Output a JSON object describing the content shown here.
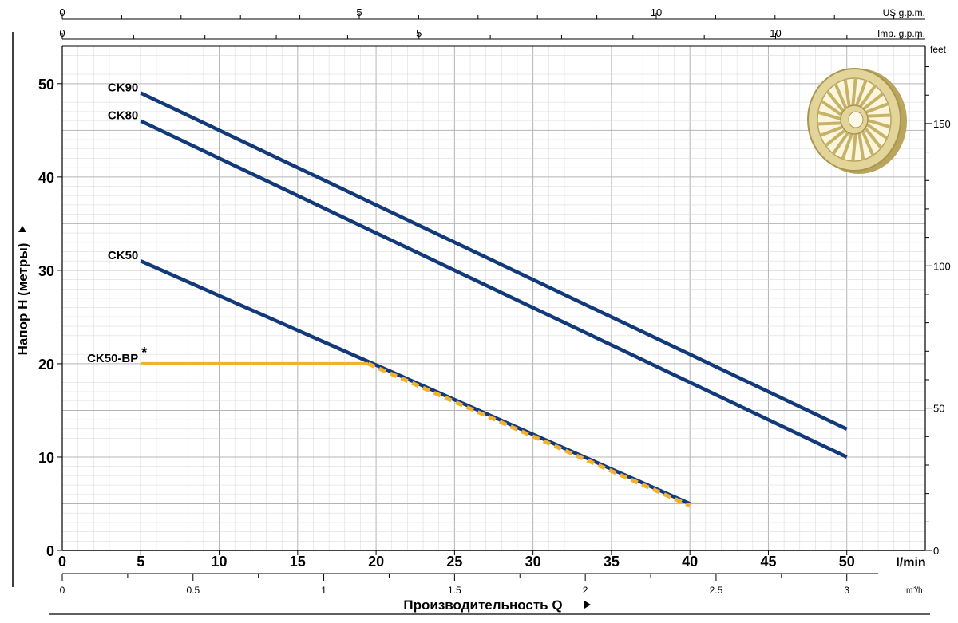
{
  "chart_data": {
    "type": "line",
    "title": "",
    "xlabel": "Производительность Q",
    "ylabel": "Напор H (метры)",
    "x_unit": "l/min",
    "xlim": [
      0,
      55
    ],
    "ylim": [
      0,
      54
    ],
    "x_ticks": [
      0,
      5,
      10,
      15,
      20,
      25,
      30,
      35,
      40,
      45,
      50
    ],
    "y_ticks": [
      0,
      10,
      20,
      30,
      40,
      50
    ],
    "grid": true,
    "secondary_axes": {
      "m3h": {
        "unit": "m³/h",
        "ticks": [
          0,
          0.5,
          1,
          1.5,
          2,
          2.5,
          3
        ]
      },
      "us_gpm": {
        "unit": "US g.p.m.",
        "ticks": [
          0,
          5,
          10
        ]
      },
      "imp_gpm": {
        "unit": "Imp. g.p.m.",
        "ticks": [
          0,
          5,
          10
        ]
      },
      "feet": {
        "unit": "feet",
        "ticks": [
          0,
          50,
          100,
          150
        ]
      }
    },
    "series": [
      {
        "name": "CK90",
        "color": "#123a7a",
        "style": "solid",
        "x": [
          5,
          50
        ],
        "y": [
          49,
          13
        ]
      },
      {
        "name": "CK80",
        "color": "#123a7a",
        "style": "solid",
        "x": [
          5,
          50
        ],
        "y": [
          46,
          10
        ]
      },
      {
        "name": "CK50",
        "color": "#123a7a",
        "style": "solid",
        "x": [
          5,
          40
        ],
        "y": [
          31,
          5
        ]
      },
      {
        "name": "CK50-BP",
        "marker": "*",
        "color": "#f2b230",
        "style": "solid-then-dashed",
        "x": [
          5,
          19.5,
          40
        ],
        "y": [
          20,
          20,
          4.8
        ]
      }
    ]
  },
  "icons": {
    "impeller": "impeller-icon",
    "arrow": "triangle-right-icon"
  },
  "colors": {
    "series_line": "#123a7a",
    "bp_line": "#f2b230",
    "grid": "#c8c8c8",
    "axis": "#000000",
    "impeller": "#e3d59a"
  }
}
